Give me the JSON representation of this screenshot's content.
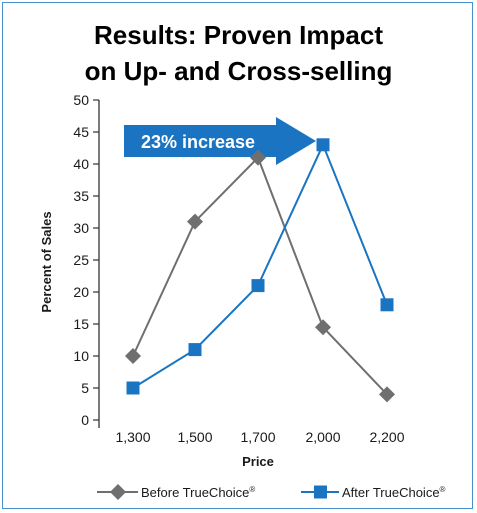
{
  "chart_data": {
    "type": "line",
    "title_line1": "Results: Proven Impact",
    "title_line2": "on Up- and Cross-selling",
    "xlabel": "Price",
    "ylabel": "Percent of Sales",
    "categories": [
      "1,300",
      "1,500",
      "1,700",
      "2,000",
      "2,200"
    ],
    "y_ticks": [
      "0",
      "5",
      "10",
      "15",
      "20",
      "25",
      "30",
      "35",
      "40",
      "45",
      "50"
    ],
    "ylim": [
      0,
      50
    ],
    "grid": false,
    "legend_position": "bottom",
    "series": [
      {
        "name": "Before TrueChoice",
        "values": [
          10,
          31,
          41,
          14.5,
          4
        ],
        "color": "#6f6f6f",
        "marker": "diamond"
      },
      {
        "name": "After TrueChoice",
        "values": [
          5,
          11,
          21,
          43,
          18
        ],
        "color": "#1b74c2",
        "marker": "square"
      }
    ],
    "registered_mark": "®",
    "annotation": {
      "text": "23% increase",
      "color": "#1b74c2"
    }
  }
}
